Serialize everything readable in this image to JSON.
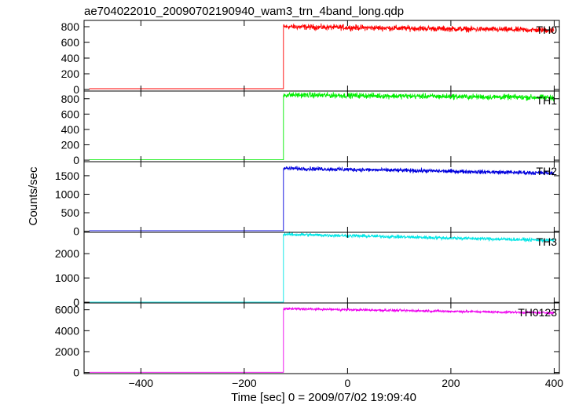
{
  "chart_data": {
    "type": "line",
    "title": "ae704022010_20090702190940_wam3_trn_4band_long.qdp",
    "xlabel": "Time [sec] 0 = 2009/07/02 19:09:40",
    "ylabel": "Counts/sec",
    "xlim": [
      -510,
      410
    ],
    "x_ticks": [
      -400,
      -200,
      0,
      200,
      400
    ],
    "x_tick_labels": [
      "−400",
      "−200",
      "0",
      "200",
      "400"
    ],
    "grid": false,
    "legend": "none",
    "onset_x": -124,
    "x_start": -500,
    "x_end": 400,
    "panels": [
      {
        "label": "TH0",
        "color": "#ff0000",
        "ylim": [
          -20,
          880
        ],
        "yticks": [
          0,
          200,
          400,
          600,
          800
        ],
        "ytick_labels": [
          "0",
          "200",
          "400",
          "600",
          "800"
        ],
        "pre_level": 10,
        "post_start": 800,
        "post_end": 755,
        "noise": 35
      },
      {
        "label": "TH1",
        "color": "#00ee00",
        "ylim": [
          -20,
          900
        ],
        "yticks": [
          0,
          200,
          400,
          600,
          800
        ],
        "ytick_labels": [
          "0",
          "200",
          "400",
          "600",
          "800"
        ],
        "pre_level": 5,
        "post_start": 850,
        "post_end": 815,
        "noise": 35
      },
      {
        "label": "TH2",
        "color": "#0000dd",
        "ylim": [
          -30,
          1880
        ],
        "yticks": [
          0,
          500,
          1000,
          1500
        ],
        "ytick_labels": [
          "0",
          "500",
          "1000",
          "1500"
        ],
        "pre_level": 15,
        "post_start": 1700,
        "post_end": 1570,
        "noise": 55
      },
      {
        "label": "TH3",
        "color": "#00e5e5",
        "ylim": [
          -30,
          2880
        ],
        "yticks": [
          0,
          1000,
          2000
        ],
        "ytick_labels": [
          "0",
          "1000",
          "2000"
        ],
        "pre_level": 5,
        "post_start": 2800,
        "post_end": 2550,
        "noise": 70
      },
      {
        "label": "TH0123",
        "color": "#ee00ee",
        "ylim": [
          -100,
          6650
        ],
        "yticks": [
          0,
          2000,
          4000,
          6000
        ],
        "ytick_labels": [
          "0",
          "2000",
          "4000",
          "6000"
        ],
        "pre_level": 25,
        "post_start": 6100,
        "post_end": 5700,
        "noise": 110
      }
    ]
  }
}
